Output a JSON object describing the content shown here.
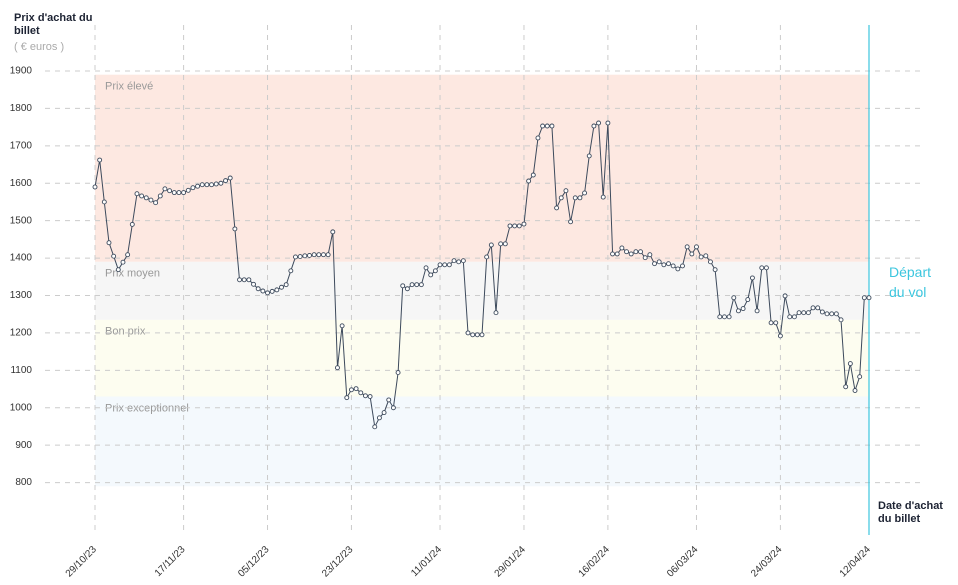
{
  "chart_data": {
    "type": "line",
    "y_label": "Prix d'achat du billet",
    "y_unit": "( € euros )",
    "x_label": "Date d'achat du billet",
    "annotation": "Départ du vol",
    "annotation_color": "#3cc6de",
    "color": "#3d4a5c",
    "ylim": [
      700,
      1920
    ],
    "yticks": [
      800,
      900,
      1000,
      1100,
      1200,
      1300,
      1400,
      1500,
      1600,
      1700,
      1800,
      1900
    ],
    "grid": true,
    "bands": [
      {
        "label": "Prix élevé",
        "from": 1390,
        "to": 1890,
        "color": "#fde8e1"
      },
      {
        "label": "Prix moyen",
        "from": 1235,
        "to": 1390,
        "color": "#f6f6f6"
      },
      {
        "label": "Bon prix",
        "from": 1030,
        "to": 1235,
        "color": "#fdfdf0"
      },
      {
        "label": "Prix exceptionnel",
        "from": 790,
        "to": 1030,
        "color": "#f4f9fd"
      }
    ],
    "categories": [
      "29/10/23",
      null,
      null,
      null,
      null,
      null,
      null,
      null,
      null,
      null,
      null,
      null,
      null,
      null,
      null,
      null,
      null,
      null,
      null,
      "17/11/23",
      null,
      null,
      null,
      null,
      null,
      null,
      null,
      null,
      null,
      null,
      null,
      null,
      null,
      null,
      null,
      null,
      null,
      "05/12/23",
      null,
      null,
      null,
      null,
      null,
      null,
      null,
      null,
      null,
      null,
      null,
      null,
      null,
      null,
      null,
      null,
      null,
      "23/12/23",
      null,
      null,
      null,
      null,
      null,
      null,
      null,
      null,
      null,
      null,
      null,
      null,
      null,
      null,
      null,
      null,
      null,
      null,
      "11/01/24",
      null,
      null,
      null,
      null,
      null,
      null,
      null,
      null,
      null,
      null,
      null,
      null,
      null,
      null,
      null,
      null,
      null,
      "29/01/24",
      null,
      null,
      null,
      null,
      null,
      null,
      null,
      null,
      null,
      null,
      null,
      null,
      null,
      null,
      null,
      null,
      null,
      "16/02/24",
      null,
      null,
      null,
      null,
      null,
      null,
      null,
      null,
      null,
      null,
      null,
      null,
      null,
      null,
      null,
      null,
      null,
      null,
      "06/03/24",
      null,
      null,
      null,
      null,
      null,
      null,
      null,
      null,
      null,
      null,
      null,
      null,
      null,
      null,
      null,
      null,
      null,
      "24/03/24",
      null,
      null,
      null,
      null,
      null,
      null,
      null,
      null,
      null,
      null,
      null,
      null,
      null,
      null,
      null,
      null,
      null,
      null,
      "12/04/24"
    ],
    "values": [
      1590,
      1662,
      1550,
      1441,
      1405,
      1369,
      1389,
      1409,
      1490,
      1572,
      1566,
      1561,
      1555,
      1548,
      1566,
      1585,
      1580,
      1575,
      1575,
      1575,
      1581,
      1588,
      1592,
      1596,
      1596,
      1596,
      1598,
      1600,
      1607,
      1614,
      1478,
      1342,
      1342,
      1342,
      1330,
      1318,
      1312,
      1307,
      1311,
      1315,
      1322,
      1329,
      1366,
      1403,
      1404,
      1406,
      1407,
      1409,
      1409,
      1409,
      1409,
      1470,
      1107,
      1219,
      1027,
      1048,
      1051,
      1040,
      1032,
      1030,
      949,
      973,
      987,
      1021,
      1000,
      1094,
      1326,
      1318,
      1329,
      1329,
      1329,
      1374,
      1355,
      1366,
      1382,
      1382,
      1382,
      1393,
      1390,
      1393,
      1200,
      1195,
      1195,
      1195,
      1403,
      1435,
      1254,
      1438,
      1438,
      1486,
      1486,
      1486,
      1491,
      1606,
      1622,
      1721,
      1753,
      1753,
      1753,
      1534,
      1561,
      1580,
      1497,
      1561,
      1561,
      1574,
      1673,
      1753,
      1761,
      1563,
      1761,
      1411,
      1411,
      1427,
      1417,
      1411,
      1417,
      1417,
      1401,
      1409,
      1385,
      1390,
      1382,
      1385,
      1379,
      1371,
      1379,
      1430,
      1411,
      1430,
      1403,
      1406,
      1390,
      1369,
      1243,
      1243,
      1243,
      1294,
      1259,
      1265,
      1289,
      1347,
      1259,
      1374,
      1374,
      1227,
      1227,
      1192,
      1299,
      1243,
      1243,
      1254,
      1254,
      1254,
      1267,
      1267,
      1256,
      1251,
      1251,
      1251,
      1235,
      1056,
      1118,
      1046,
      1083,
      1294,
      1294
    ]
  }
}
